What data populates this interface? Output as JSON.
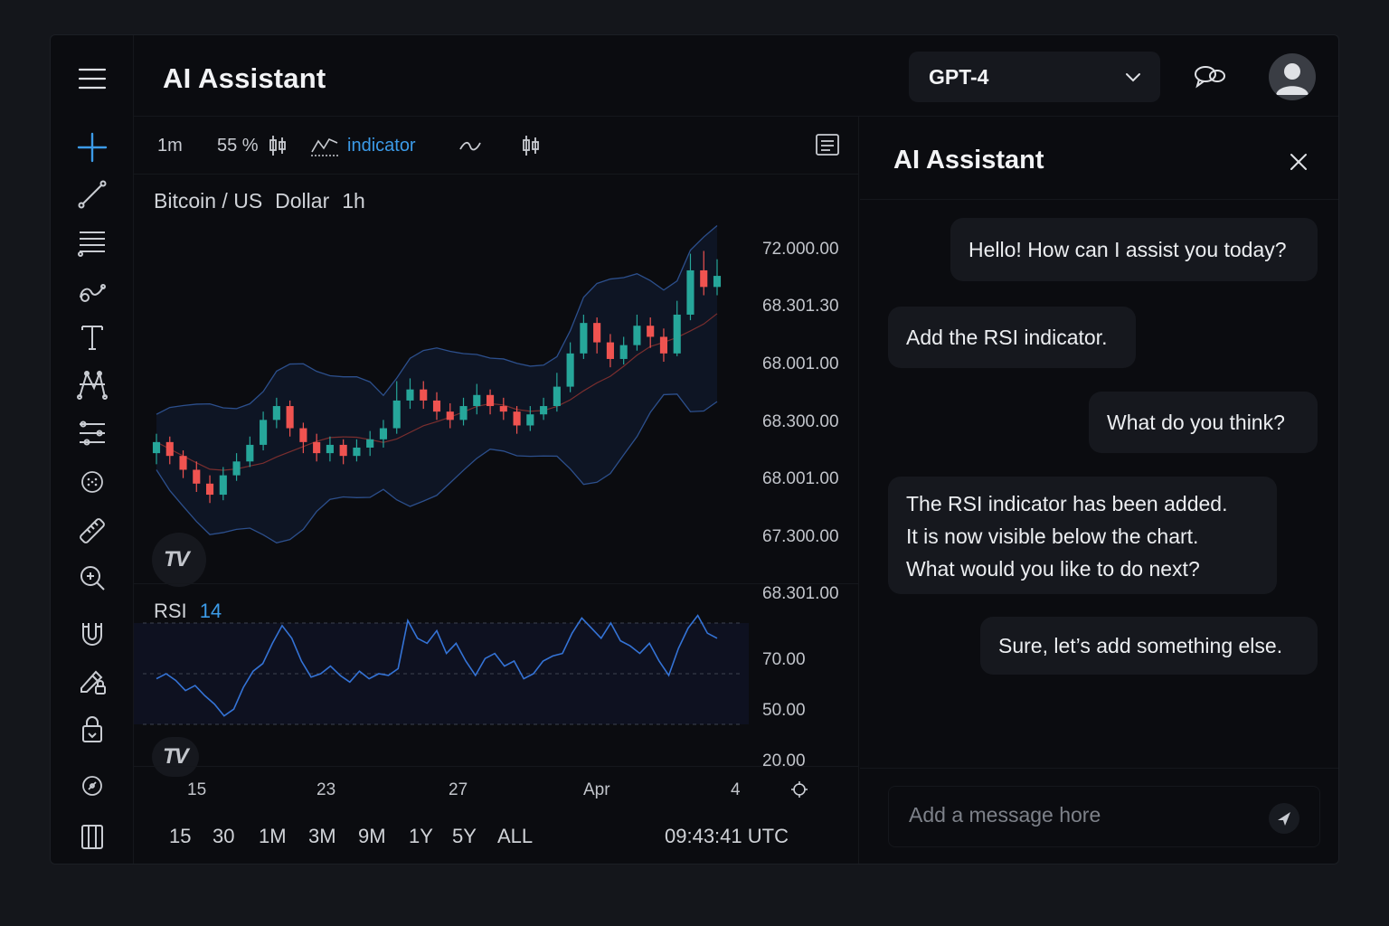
{
  "header": {
    "title": "AI Assistant",
    "model": "GPT-4"
  },
  "chart_toolbar": {
    "interval": "1m",
    "zoom": "55 %",
    "indicator_label": "indicator"
  },
  "chart": {
    "symbol_parts": [
      "Bitcoin / US",
      "Dollar",
      "1h"
    ],
    "rsi_label": "RSI",
    "rsi_period": "14",
    "clock": "09:43:41 UTC",
    "time_ranges": [
      "15",
      "30",
      "1M",
      "3M",
      "9M",
      "1Y",
      "5Y",
      "ALL"
    ],
    "logo_text": "TV"
  },
  "panel": {
    "title": "AI Assistant",
    "messages": [
      {
        "role": "assistant",
        "text": "Hello! How can I assist you today?"
      },
      {
        "role": "user",
        "text": "Add the RSI indicator."
      },
      {
        "role": "assistant",
        "text": "What do you think?"
      },
      {
        "role": "user",
        "text": "The RSI indicator has been added.\nIt is now visible below the chart.\nWhat would you like to do next?"
      },
      {
        "role": "assistant",
        "text": "Sure, let’s add something else."
      }
    ],
    "composer_placeholder": "Add a message hore"
  },
  "colors": {
    "accent": "#3c9be8",
    "up": "#26a69a",
    "down": "#ef5350",
    "background": "#0b0c10",
    "bubble": "#16181e"
  },
  "chart_data": {
    "type": "candlestick",
    "title": "Bitcoin / US Dollar 1h",
    "price_axis_labels": [
      "72.000.00",
      "68.301.30",
      "68.001.00",
      "68.300.00",
      "68.001.00",
      "67.300.00",
      "68.301.00"
    ],
    "x_tick_labels": [
      "15",
      "23",
      "27",
      "Apr",
      "4"
    ],
    "overlays": [
      "bollinger-bands",
      "moving-average"
    ],
    "rsi": {
      "period": 14,
      "levels": [
        70,
        50,
        20
      ],
      "level_labels": [
        "70.00",
        "50.00",
        "20.00"
      ],
      "ylim": [
        10,
        80
      ],
      "values": [
        47,
        50,
        46,
        40,
        43,
        37,
        32,
        25,
        29,
        42,
        51,
        54,
        62,
        69,
        64,
        55,
        48,
        50,
        53,
        49,
        45,
        51,
        47,
        50,
        49,
        52,
        71,
        64,
        62,
        67,
        58,
        62,
        55,
        49,
        56,
        58,
        53,
        55,
        47,
        50,
        55,
        57,
        58,
        66,
        72,
        68,
        64,
        70,
        63,
        61,
        58,
        62,
        55,
        49,
        60,
        68,
        73,
        66,
        64
      ]
    },
    "candles": [
      [
        67.1,
        67.3,
        66.9,
        67.45
      ],
      [
        67.3,
        67.05,
        66.9,
        67.4
      ],
      [
        67.05,
        66.8,
        66.65,
        67.15
      ],
      [
        66.8,
        66.55,
        66.4,
        66.95
      ],
      [
        66.55,
        66.35,
        66.2,
        66.7
      ],
      [
        66.35,
        66.7,
        66.25,
        66.85
      ],
      [
        66.7,
        66.95,
        66.6,
        67.1
      ],
      [
        66.95,
        67.25,
        66.85,
        67.4
      ],
      [
        67.25,
        67.7,
        67.15,
        67.85
      ],
      [
        67.7,
        67.95,
        67.55,
        68.1
      ],
      [
        67.95,
        67.55,
        67.4,
        68.05
      ],
      [
        67.55,
        67.3,
        67.1,
        67.65
      ],
      [
        67.3,
        67.1,
        66.95,
        67.45
      ],
      [
        67.1,
        67.25,
        66.95,
        67.4
      ],
      [
        67.25,
        67.05,
        66.9,
        67.35
      ],
      [
        67.05,
        67.2,
        66.95,
        67.35
      ],
      [
        67.2,
        67.35,
        67.05,
        67.5
      ],
      [
        67.35,
        67.55,
        67.2,
        67.7
      ],
      [
        67.55,
        68.05,
        67.45,
        68.4
      ],
      [
        68.05,
        68.25,
        67.9,
        68.45
      ],
      [
        68.25,
        68.05,
        67.9,
        68.4
      ],
      [
        68.05,
        67.85,
        67.7,
        68.2
      ],
      [
        67.85,
        67.7,
        67.55,
        68.0
      ],
      [
        67.7,
        67.95,
        67.6,
        68.1
      ],
      [
        67.95,
        68.15,
        67.8,
        68.35
      ],
      [
        68.15,
        67.95,
        67.8,
        68.25
      ],
      [
        67.95,
        67.85,
        67.7,
        68.1
      ],
      [
        67.85,
        67.6,
        67.45,
        67.95
      ],
      [
        67.6,
        67.8,
        67.5,
        67.95
      ],
      [
        67.8,
        67.95,
        67.7,
        68.1
      ],
      [
        67.95,
        68.3,
        67.85,
        68.55
      ],
      [
        68.3,
        68.9,
        68.2,
        69.1
      ],
      [
        68.9,
        69.45,
        68.8,
        69.6
      ],
      [
        69.45,
        69.1,
        68.9,
        69.55
      ],
      [
        69.1,
        68.8,
        68.65,
        69.25
      ],
      [
        68.8,
        69.05,
        68.7,
        69.2
      ],
      [
        69.05,
        69.4,
        68.95,
        69.6
      ],
      [
        69.4,
        69.2,
        69.0,
        69.55
      ],
      [
        69.2,
        68.9,
        68.75,
        69.35
      ],
      [
        68.9,
        69.6,
        68.85,
        69.85
      ],
      [
        69.6,
        70.4,
        69.5,
        70.7
      ],
      [
        70.4,
        70.1,
        69.95,
        70.75
      ],
      [
        70.1,
        70.3,
        69.95,
        70.6
      ]
    ]
  }
}
